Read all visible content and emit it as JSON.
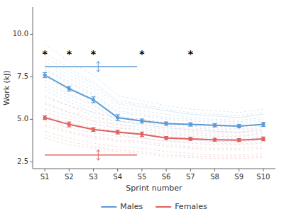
{
  "chart_data": {
    "type": "line",
    "x_label": "Sprint number",
    "y_label": "Work (kJ)",
    "x": [
      1,
      2,
      3,
      4,
      5,
      6,
      7,
      8,
      9,
      10
    ],
    "xlim": [
      0.5,
      10.5
    ],
    "xticks": [
      {
        "value": 1,
        "label": "S1"
      },
      {
        "value": 2,
        "label": "S2"
      },
      {
        "value": 3,
        "label": "S3"
      },
      {
        "value": 4,
        "label": "S4"
      },
      {
        "value": 5,
        "label": "S5"
      },
      {
        "value": 6,
        "label": "S6"
      },
      {
        "value": 7,
        "label": "S7"
      },
      {
        "value": 8,
        "label": "S8"
      },
      {
        "value": 9,
        "label": "S9"
      },
      {
        "value": 10,
        "label": "S10"
      }
    ],
    "ylim": [
      2.1,
      11.6
    ],
    "yticks": [
      2.5,
      {
        "value": 5,
        "label": "5.0"
      },
      7.5,
      {
        "value": 10,
        "label": "10.0"
      }
    ],
    "grid": false,
    "legend": "bottom",
    "series": [
      {
        "name": "Males",
        "color": "#5B9BD5",
        "values": [
          7.6,
          6.8,
          6.15,
          5.1,
          4.9,
          4.75,
          4.7,
          4.65,
          4.6,
          4.7
        ],
        "errors": [
          0.15,
          0.14,
          0.17,
          0.17,
          0.12,
          0.1,
          0.1,
          0.1,
          0.1,
          0.12
        ],
        "individuals": [
          [
            7.9,
            7.1,
            6.4,
            5.4,
            5.2,
            5.0,
            4.9,
            4.8,
            4.75,
            4.9
          ],
          [
            8.2,
            7.4,
            6.7,
            5.7,
            5.5,
            5.3,
            5.1,
            5.0,
            4.95,
            5.1
          ],
          [
            7.7,
            6.9,
            6.2,
            5.2,
            5.0,
            4.8,
            4.7,
            4.6,
            4.55,
            4.7
          ],
          [
            7.3,
            6.5,
            5.9,
            4.9,
            4.7,
            4.5,
            4.4,
            4.3,
            4.25,
            4.4
          ],
          [
            6.9,
            6.2,
            5.6,
            4.7,
            4.5,
            4.3,
            4.2,
            4.1,
            4.05,
            4.2
          ],
          [
            6.7,
            6.0,
            5.4,
            4.5,
            4.3,
            4.1,
            4.0,
            3.9,
            3.85,
            4.0
          ],
          [
            7.1,
            6.4,
            5.8,
            4.9,
            4.7,
            4.5,
            4.4,
            4.3,
            4.25,
            4.4
          ],
          [
            8.4,
            7.6,
            6.9,
            5.9,
            5.7,
            5.5,
            5.3,
            5.2,
            5.1,
            5.3
          ],
          [
            8.9,
            8.0,
            7.2,
            6.1,
            5.9,
            5.6,
            5.4,
            5.3,
            5.2,
            5.4
          ],
          [
            6.4,
            5.8,
            5.2,
            4.3,
            4.1,
            3.9,
            3.8,
            3.7,
            3.65,
            3.8
          ],
          [
            7.5,
            6.7,
            6.1,
            5.1,
            4.9,
            4.7,
            4.6,
            4.5,
            4.45,
            4.6
          ],
          [
            8.7,
            7.8,
            7.1,
            6.0,
            5.8,
            5.5,
            5.3,
            5.2,
            5.1,
            5.3
          ],
          [
            9.4,
            8.4,
            7.6,
            6.4,
            6.1,
            5.8,
            5.6,
            5.5,
            5.4,
            5.6
          ],
          [
            6.0,
            5.4,
            4.9,
            4.1,
            3.9,
            3.75,
            3.65,
            3.6,
            3.55,
            3.65
          ],
          [
            8.0,
            7.2,
            6.5,
            5.5,
            5.3,
            5.1,
            5.0,
            4.9,
            4.85,
            5.0
          ]
        ]
      },
      {
        "name": "Females",
        "color": "#E06060",
        "values": [
          5.1,
          4.7,
          4.4,
          4.25,
          4.12,
          3.9,
          3.85,
          3.8,
          3.78,
          3.85
        ],
        "errors": [
          0.11,
          0.14,
          0.11,
          0.11,
          0.13,
          0.09,
          0.09,
          0.09,
          0.09,
          0.11
        ],
        "individuals": [
          [
            5.4,
            5.0,
            4.7,
            4.5,
            4.4,
            4.2,
            4.1,
            4.0,
            4.0,
            4.1
          ],
          [
            5.6,
            5.2,
            4.9,
            4.7,
            4.6,
            4.4,
            4.3,
            4.2,
            4.2,
            4.3
          ],
          [
            4.9,
            4.5,
            4.2,
            4.0,
            3.9,
            3.7,
            3.6,
            3.5,
            3.5,
            3.6
          ],
          [
            4.6,
            4.2,
            3.9,
            3.7,
            3.6,
            3.4,
            3.3,
            3.2,
            3.2,
            3.3
          ],
          [
            5.9,
            5.4,
            5.1,
            4.9,
            4.8,
            4.6,
            4.5,
            4.4,
            4.4,
            4.5
          ],
          [
            4.3,
            3.9,
            3.6,
            3.4,
            3.3,
            3.1,
            3.0,
            2.9,
            2.9,
            3.0
          ],
          [
            3.9,
            3.5,
            3.3,
            3.1,
            3.0,
            2.8,
            2.75,
            2.7,
            2.7,
            2.75
          ],
          [
            6.3,
            5.8,
            5.4,
            5.1,
            5.0,
            4.8,
            4.7,
            4.6,
            4.6,
            4.7
          ],
          [
            5.1,
            4.7,
            4.4,
            4.2,
            4.1,
            3.9,
            3.8,
            3.7,
            3.7,
            3.8
          ],
          [
            4.1,
            3.7,
            3.4,
            3.2,
            3.1,
            2.9,
            2.85,
            2.8,
            2.8,
            2.85
          ],
          [
            5.2,
            4.8,
            4.5,
            4.3,
            4.2,
            4.0,
            3.9,
            3.8,
            3.8,
            3.9
          ],
          [
            4.7,
            4.3,
            4.0,
            3.8,
            3.7,
            3.5,
            3.4,
            3.3,
            3.3,
            3.4
          ]
        ]
      }
    ],
    "reference_lines": [
      {
        "y": 8.1,
        "x_start": 1,
        "x_end": 4.8,
        "color": "#5B9BD5"
      },
      {
        "y": 2.9,
        "x_start": 1,
        "x_end": 4.8,
        "color": "#E06060"
      }
    ],
    "reference_marker_x": 3.2,
    "annotations": [
      {
        "text": "*",
        "x": 1,
        "y": 8.85
      },
      {
        "text": "*",
        "x": 2,
        "y": 8.85
      },
      {
        "text": "*",
        "x": 3,
        "y": 8.85
      },
      {
        "text": "*",
        "x": 5,
        "y": 8.85
      },
      {
        "text": "*",
        "x": 7,
        "y": 8.85
      }
    ]
  }
}
